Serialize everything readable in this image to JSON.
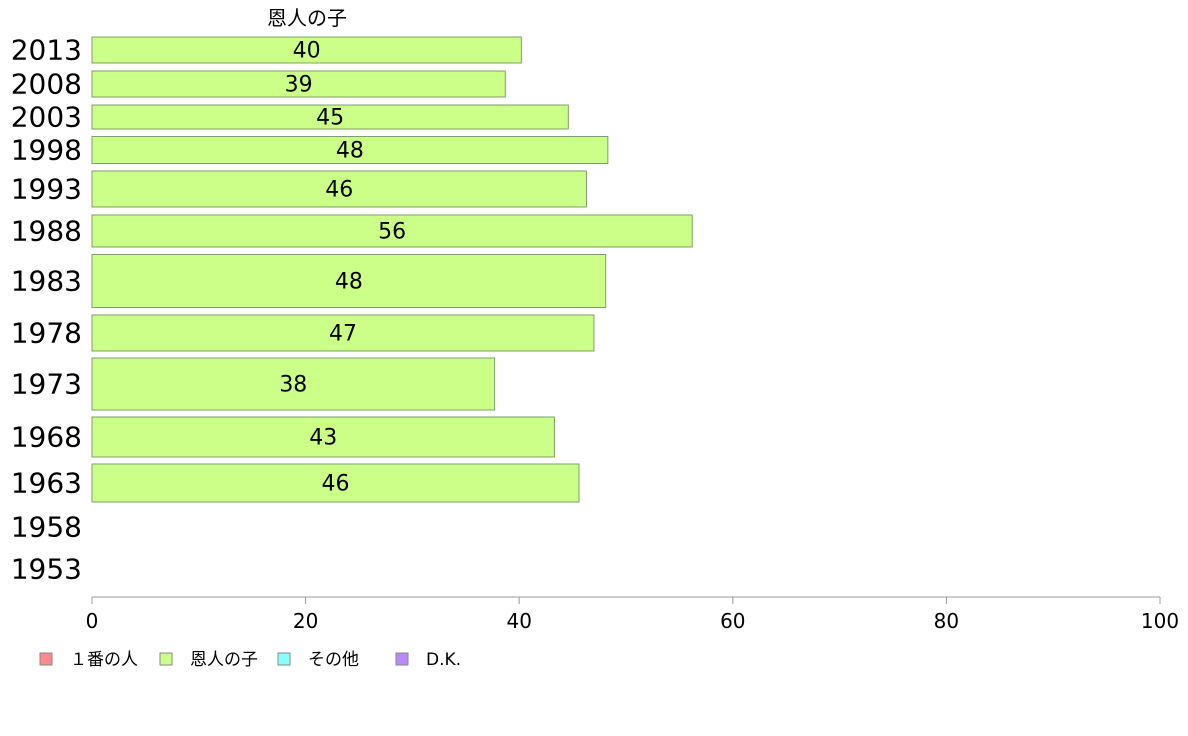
{
  "chart_data": {
    "type": "bar",
    "orientation": "horizontal",
    "title": "",
    "series_title": "恩人の子",
    "categories": [
      "2013",
      "2008",
      "2003",
      "1998",
      "1993",
      "1988",
      "1983",
      "1978",
      "1973",
      "1968",
      "1963",
      "1958",
      "1953"
    ],
    "series": [
      {
        "name": "恩人の子",
        "color": "#ccff88",
        "values": [
          40,
          39,
          45,
          48,
          46,
          56,
          48,
          47,
          38,
          43,
          46,
          null,
          null
        ],
        "display_values": [
          40.2,
          38.7,
          44.6,
          48.3,
          46.3,
          56.2,
          48.1,
          47.0,
          37.7,
          43.3,
          45.6,
          null,
          null
        ]
      }
    ],
    "xlim": [
      0,
      100
    ],
    "xticks": [
      0,
      20,
      40,
      60,
      80,
      100
    ],
    "xlabel": "",
    "ylabel": "",
    "grid": false,
    "legend": {
      "position": "bottom-left",
      "items": [
        {
          "label": "１番の人",
          "color": "#ff8888"
        },
        {
          "label": "恩人の子",
          "color": "#ccff88"
        },
        {
          "label": "その他",
          "color": "#88ffff"
        },
        {
          "label": "D.K.",
          "color": "#bb88ff"
        }
      ]
    }
  }
}
